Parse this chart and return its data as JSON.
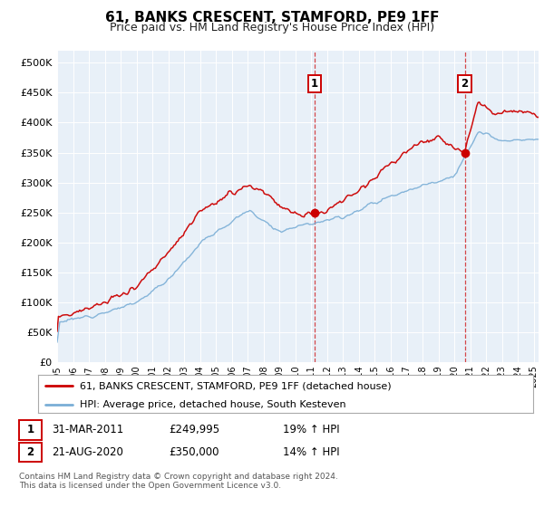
{
  "title": "61, BANKS CRESCENT, STAMFORD, PE9 1FF",
  "subtitle": "Price paid vs. HM Land Registry's House Price Index (HPI)",
  "ytick_values": [
    0,
    50000,
    100000,
    150000,
    200000,
    250000,
    300000,
    350000,
    400000,
    450000,
    500000
  ],
  "ylim": [
    0,
    520000
  ],
  "xlim_start": 1995.0,
  "xlim_end": 2025.3,
  "background_color": "#e8f0f8",
  "grid_color": "#ffffff",
  "red_line_color": "#cc0000",
  "blue_line_color": "#7aaed6",
  "marker1_date": 2011.2,
  "marker1_price": 249995,
  "marker2_date": 2020.65,
  "marker2_price": 350000,
  "dashed_line_color": "#cc0000",
  "legend_red_label": "61, BANKS CRESCENT, STAMFORD, PE9 1FF (detached house)",
  "legend_blue_label": "HPI: Average price, detached house, South Kesteven",
  "annot1_date": "31-MAR-2011",
  "annot1_price": "£249,995",
  "annot1_hpi": "19% ↑ HPI",
  "annot2_date": "21-AUG-2020",
  "annot2_price": "£350,000",
  "annot2_hpi": "14% ↑ HPI",
  "footer": "Contains HM Land Registry data © Crown copyright and database right 2024.\nThis data is licensed under the Open Government Licence v3.0.",
  "xtick_years": [
    "1995",
    "1996",
    "1997",
    "1998",
    "1999",
    "2000",
    "2001",
    "2002",
    "2003",
    "2004",
    "2005",
    "2006",
    "2007",
    "2008",
    "2009",
    "2010",
    "2011",
    "2012",
    "2013",
    "2014",
    "2015",
    "2016",
    "2017",
    "2018",
    "2019",
    "2020",
    "2021",
    "2022",
    "2023",
    "2024",
    "2025"
  ]
}
